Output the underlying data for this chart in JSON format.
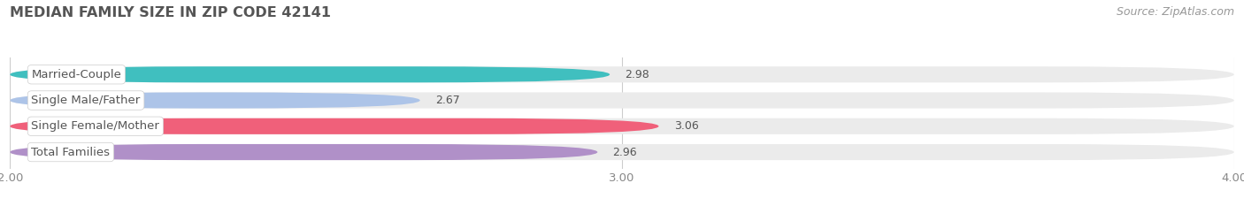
{
  "title": "MEDIAN FAMILY SIZE IN ZIP CODE 42141",
  "source": "Source: ZipAtlas.com",
  "categories": [
    "Married-Couple",
    "Single Male/Father",
    "Single Female/Mother",
    "Total Families"
  ],
  "values": [
    2.98,
    2.67,
    3.06,
    2.96
  ],
  "bar_colors": [
    "#40bfbf",
    "#adc4e8",
    "#f0607a",
    "#b090c8"
  ],
  "bar_bg_color": "#ebebeb",
  "xlim": [
    2.0,
    4.0
  ],
  "xmin": 2.0,
  "xmax": 4.0,
  "xticks": [
    2.0,
    3.0,
    4.0
  ],
  "background_color": "#ffffff",
  "title_fontsize": 11.5,
  "label_fontsize": 9.5,
  "value_fontsize": 9,
  "source_fontsize": 9,
  "bar_height": 0.62,
  "grid_color": "#cccccc",
  "text_color": "#555555",
  "source_color": "#999999"
}
